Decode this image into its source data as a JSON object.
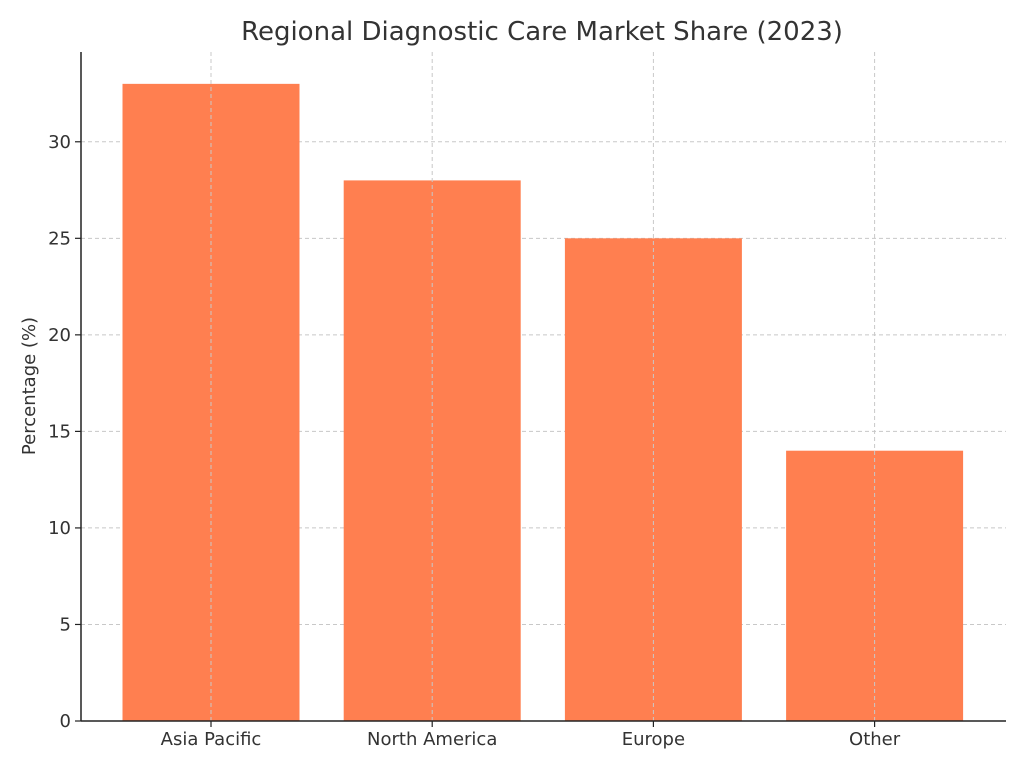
{
  "chart_data": {
    "type": "bar",
    "title": "Regional Diagnostic Care Market Share (2023)",
    "xlabel": "",
    "ylabel": "Percentage (%)",
    "categories": [
      "Asia Pacific",
      "North America",
      "Europe",
      "Other"
    ],
    "values": [
      33,
      28,
      25,
      14
    ],
    "ylim": [
      0,
      34.65
    ],
    "yticks": [
      0,
      5,
      10,
      15,
      20,
      25,
      30
    ],
    "grid": true,
    "bar_color": "#FF7F50"
  }
}
